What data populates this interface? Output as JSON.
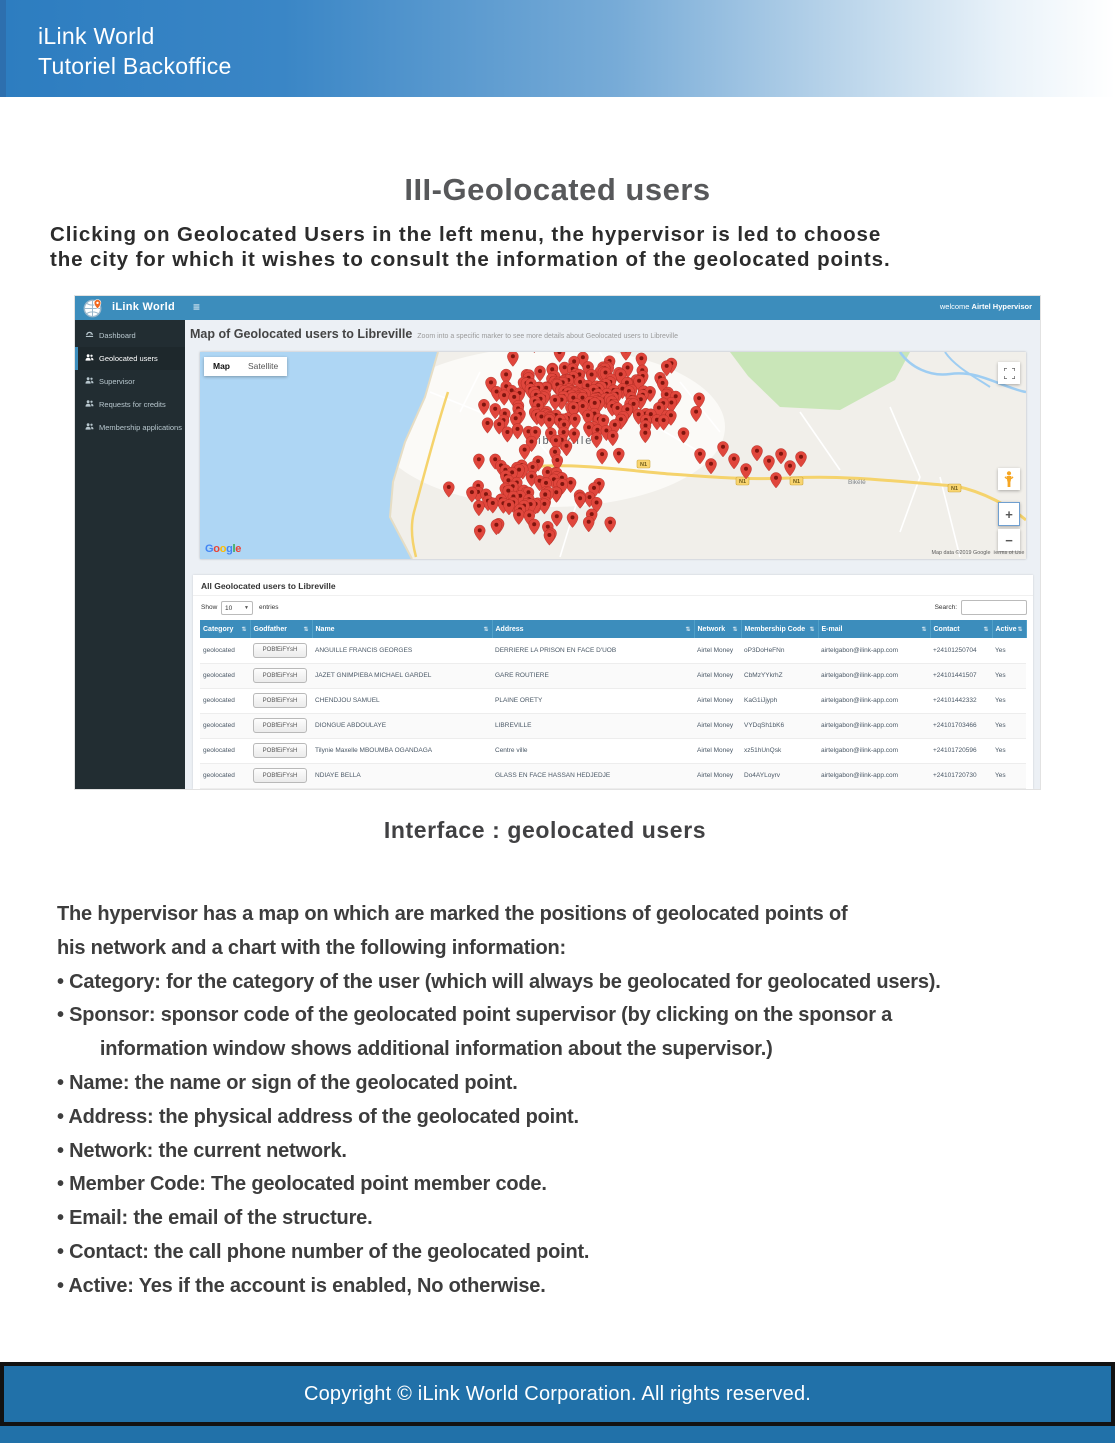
{
  "banner": {
    "line1": "iLink World",
    "line2": "Tutoriel Backoffice"
  },
  "title": "III-Geolocated users",
  "intro": {
    "line1": "Clicking on Geolocated Users in the left menu, the hypervisor is led to choose",
    "line2": "the city for which it wishes to consult the information of the geolocated points."
  },
  "app": {
    "brand": "iLink World",
    "menu_icon": "≡",
    "welcome_prefix": "welcome ",
    "welcome_name": "Airtel Hypervisor",
    "sidebar": [
      {
        "label": "Dashboard",
        "icon": "dashboard-icon",
        "active": false
      },
      {
        "label": "Geolocated users",
        "icon": "users-icon",
        "active": true
      },
      {
        "label": "Supervisor",
        "icon": "users-icon",
        "active": false
      },
      {
        "label": "Requests for credits",
        "icon": "users-icon",
        "active": false
      },
      {
        "label": "Membership applications",
        "icon": "users-icon",
        "active": false
      }
    ],
    "content_header": {
      "title": "Map of Geolocated users to Libreville",
      "subtitle": "Zoom into a specific marker to see more details about Geolocated users to Libreville"
    },
    "map": {
      "type_map": "Map",
      "type_satellite": "Satellite",
      "city_label": "Libreville",
      "place_label": "Bikélé",
      "road_badge": "N1",
      "google_logo": [
        "G",
        "o",
        "o",
        "g",
        "l",
        "e"
      ],
      "attribution": "Map data ©2019 Google",
      "terms": "Terms of Use",
      "zoom_in": "+",
      "zoom_out": "−",
      "marker_color": "#e0463c"
    },
    "table_panel": {
      "title": "All Geolocated users to Libreville",
      "show_label": "Show",
      "page_size": "10",
      "entries_label": "entries",
      "search_label": "Search:",
      "columns": [
        "Category",
        "Godfather",
        "Name",
        "Address",
        "Network",
        "Membership Code",
        "E-mail",
        "Contact",
        "Active"
      ],
      "rows": [
        [
          "geolocated",
          "POBfEiFYsH",
          "ANGUILLE FRANCIS GEORGES",
          "DERRIERE LA PRISON EN FACE D'UOB",
          "Airtel Money",
          "oP3DoHeFNn",
          "airtelgabon@ilink-app.com",
          "+24101250704",
          "Yes"
        ],
        [
          "geolocated",
          "POBfEiFYsH",
          "JAZET GNIMPIEBA MICHAEL GARDEL",
          "GARE ROUTIERE",
          "Airtel Money",
          "CbMzYYkrhZ",
          "airtelgabon@ilink-app.com",
          "+24101441507",
          "Yes"
        ],
        [
          "geolocated",
          "POBfEiFYsH",
          "CHENDJOU SAMUEL",
          "PLAINE ORETY",
          "Airtel Money",
          "KaG1iJjyph",
          "airtelgabon@ilink-app.com",
          "+24101442332",
          "Yes"
        ],
        [
          "geolocated",
          "POBfEiFYsH",
          "DIONGUE ABDOULAYE",
          "LIBREVILLE",
          "Airtel Money",
          "VYDqSh1bK6",
          "airtelgabon@ilink-app.com",
          "+24101703466",
          "Yes"
        ],
        [
          "geolocated",
          "POBfEiFYsH",
          "Tilynie Maxelle MBOUMBA OGANDAGA",
          "Centre ville",
          "Airtel Money",
          "xz51hUnQsk",
          "airtelgabon@ilink-app.com",
          "+24101720596",
          "Yes"
        ],
        [
          "geolocated",
          "POBfEiFYsH",
          "NDIAYE BELLA",
          "GLASS EN FACE HASSAN HEDJEDJE",
          "Airtel Money",
          "Do4AYLoyrv",
          "airtelgabon@ilink-app.com",
          "+24101720730",
          "Yes"
        ]
      ]
    }
  },
  "caption": "Interface : geolocated users",
  "description_lines": [
    "The hypervisor has a map on which are marked the positions of geolocated points of",
    "his network and a chart with the following information:",
    "• Category: for the category of the user (which will always be geolocated for geolocated users).",
    "• Sponsor: sponsor code of the geolocated point supervisor (by clicking on the sponsor a",
    "        information window shows additional information about the supervisor.)",
    "• Name: the name or sign of the geolocated point.",
    "• Address: the physical address of the geolocated point.",
    "• Network: the current network.",
    "• Member Code: The geolocated point member code.",
    "• Email: the email of the structure.",
    "• Contact: the call phone number of the geolocated point.",
    "• Active: Yes if the account is enabled, No otherwise."
  ],
  "footer": "Copyright © iLink World Corporation. All rights reserved.",
  "colors": {
    "topbar": "#3c8dbc",
    "sidebar": "#222d32",
    "table_header": "#3c8dbc",
    "footer": "#2171a9",
    "marker": "#e0463c",
    "banner": "#2d7dc0",
    "water": "#aed6f4",
    "forest": "#c9e6b8",
    "road": "#f5d36c"
  }
}
